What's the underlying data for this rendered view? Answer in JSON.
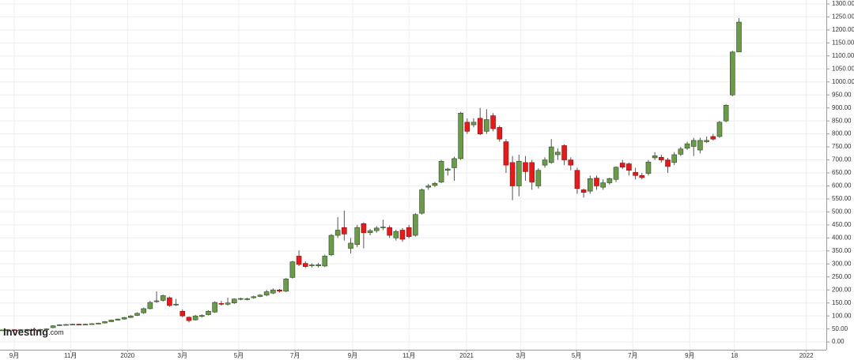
{
  "chart_data": {
    "type": "candlestick",
    "brand": [
      "Investing",
      ".com"
    ],
    "up_color": "#6a9a4a",
    "down_color": "#e41b1b",
    "grid": true,
    "ylim": [
      -30,
      1315
    ],
    "yticks": [
      {
        "value": 0,
        "label": "0.00"
      },
      {
        "value": 50,
        "label": "50.00"
      },
      {
        "value": 100,
        "label": "100.00"
      },
      {
        "value": 150,
        "label": "150.00"
      },
      {
        "value": 200,
        "label": "200.00"
      },
      {
        "value": 250,
        "label": "250.00"
      },
      {
        "value": 300,
        "label": "300.00"
      },
      {
        "value": 350,
        "label": "350.00"
      },
      {
        "value": 400,
        "label": "400.00"
      },
      {
        "value": 450,
        "label": "450.00"
      },
      {
        "value": 500,
        "label": "500.00"
      },
      {
        "value": 550,
        "label": "550.00"
      },
      {
        "value": 600,
        "label": "600.00"
      },
      {
        "value": 650,
        "label": "650.00"
      },
      {
        "value": 700,
        "label": "700.00"
      },
      {
        "value": 750,
        "label": "750.00"
      },
      {
        "value": 800,
        "label": "800.00"
      },
      {
        "value": 850,
        "label": "850.00"
      },
      {
        "value": 900,
        "label": "900.00"
      },
      {
        "value": 950,
        "label": "950.00"
      },
      {
        "value": 1000,
        "label": "1000.00"
      },
      {
        "value": 1050,
        "label": "1050.00"
      },
      {
        "value": 1100,
        "label": "1100.00"
      },
      {
        "value": 1150,
        "label": "1150.00"
      },
      {
        "value": 1200,
        "label": "1200.00"
      },
      {
        "value": 1250,
        "label": "1250.00"
      },
      {
        "value": 1300,
        "label": "1300.00"
      }
    ],
    "xlim": [
      -2.2,
      125.5
    ],
    "xticks": [
      {
        "value": 0,
        "label": "9月"
      },
      {
        "value": 8.7,
        "label": "11月"
      },
      {
        "value": 17.5,
        "label": "2020"
      },
      {
        "value": 26,
        "label": "3月"
      },
      {
        "value": 34.7,
        "label": "5月"
      },
      {
        "value": 43.4,
        "label": "7月"
      },
      {
        "value": 52.3,
        "label": "9月"
      },
      {
        "value": 61,
        "label": "11月"
      },
      {
        "value": 69.9,
        "label": "2021"
      },
      {
        "value": 78.3,
        "label": "3月"
      },
      {
        "value": 86.9,
        "label": "5月"
      },
      {
        "value": 95.6,
        "label": "7月"
      },
      {
        "value": 104.4,
        "label": "9月"
      },
      {
        "value": 111.3,
        "label": "18"
      },
      {
        "value": 122.4,
        "label": "2022"
      }
    ],
    "x": [
      -2,
      -1,
      0,
      1,
      2,
      3,
      4,
      5,
      6,
      7,
      8,
      9,
      10,
      11,
      12,
      13,
      14,
      15,
      16,
      17,
      18,
      19,
      20,
      21,
      22,
      23,
      24,
      25,
      26,
      27,
      28,
      29,
      30,
      31,
      32,
      33,
      34,
      35,
      36,
      37,
      38,
      39,
      40,
      41,
      42,
      43,
      44,
      45,
      46,
      47,
      48,
      49,
      50,
      51,
      52,
      53,
      54,
      55,
      56,
      57,
      58,
      59,
      60,
      61,
      62,
      63,
      64,
      65,
      66,
      67,
      68,
      69,
      70,
      71,
      72,
      73,
      74,
      75,
      76,
      77,
      78,
      79,
      80,
      81,
      82,
      83,
      84,
      85,
      86,
      87,
      88,
      89,
      90,
      91,
      92,
      93,
      94,
      95,
      96,
      97,
      98,
      99,
      100,
      101,
      102,
      103,
      104,
      105,
      106,
      107,
      108,
      109,
      110,
      111,
      112
    ],
    "ohlc": [
      [
        46,
        48,
        44,
        46
      ],
      [
        46,
        49,
        44,
        47
      ],
      [
        47,
        49,
        45,
        46
      ],
      [
        46,
        49,
        44,
        47
      ],
      [
        47,
        50,
        45,
        48
      ],
      [
        48,
        50,
        45,
        47
      ],
      [
        47,
        50,
        45,
        48
      ],
      [
        48,
        52,
        46,
        50
      ],
      [
        55,
        64,
        53,
        62
      ],
      [
        63,
        68,
        61,
        66
      ],
      [
        66,
        69,
        64,
        67
      ],
      [
        67,
        70,
        65,
        68
      ],
      [
        68,
        70,
        65,
        67
      ],
      [
        67,
        70,
        65,
        68
      ],
      [
        68,
        72,
        66,
        70
      ],
      [
        70,
        74,
        68,
        72
      ],
      [
        73,
        80,
        71,
        78
      ],
      [
        78,
        86,
        76,
        84
      ],
      [
        84,
        90,
        82,
        88
      ],
      [
        88,
        96,
        86,
        94
      ],
      [
        94,
        103,
        92,
        100
      ],
      [
        102,
        114,
        100,
        110
      ],
      [
        112,
        132,
        108,
        128
      ],
      [
        128,
        158,
        125,
        152
      ],
      [
        155,
        195,
        150,
        158
      ],
      [
        160,
        182,
        155,
        178
      ],
      [
        170,
        175,
        135,
        140
      ],
      [
        142,
        165,
        138,
        145
      ],
      [
        118,
        125,
        95,
        100
      ],
      [
        95,
        98,
        75,
        82
      ],
      [
        85,
        104,
        82,
        100
      ],
      [
        98,
        106,
        94,
        102
      ],
      [
        105,
        122,
        102,
        118
      ],
      [
        115,
        156,
        112,
        152
      ],
      [
        148,
        158,
        140,
        146
      ],
      [
        145,
        170,
        140,
        150
      ],
      [
        150,
        168,
        146,
        165
      ],
      [
        165,
        170,
        160,
        167
      ],
      [
        163,
        170,
        160,
        166
      ],
      [
        170,
        178,
        166,
        174
      ],
      [
        175,
        184,
        172,
        180
      ],
      [
        180,
        200,
        176,
        193
      ],
      [
        188,
        206,
        184,
        200
      ],
      [
        200,
        204,
        190,
        195
      ],
      [
        195,
        246,
        192,
        242
      ],
      [
        248,
        312,
        244,
        308
      ],
      [
        330,
        352,
        292,
        298
      ],
      [
        302,
        310,
        284,
        290
      ],
      [
        293,
        302,
        286,
        296
      ],
      [
        293,
        304,
        286,
        297
      ],
      [
        292,
        336,
        288,
        330
      ],
      [
        335,
        415,
        330,
        410
      ],
      [
        410,
        480,
        400,
        430
      ],
      [
        440,
        505,
        390,
        415
      ],
      [
        360,
        400,
        340,
        380
      ],
      [
        375,
        450,
        365,
        440
      ],
      [
        455,
        460,
        360,
        420
      ],
      [
        420,
        435,
        410,
        428
      ],
      [
        428,
        445,
        420,
        438
      ],
      [
        440,
        470,
        430,
        442
      ],
      [
        440,
        448,
        400,
        410
      ],
      [
        400,
        432,
        390,
        425
      ],
      [
        430,
        438,
        385,
        395
      ],
      [
        440,
        450,
        398,
        405
      ],
      [
        410,
        495,
        405,
        490
      ],
      [
        495,
        590,
        490,
        585
      ],
      [
        595,
        608,
        585,
        600
      ],
      [
        602,
        615,
        595,
        610
      ],
      [
        615,
        700,
        610,
        695
      ],
      [
        660,
        670,
        640,
        665
      ],
      [
        670,
        712,
        620,
        705
      ],
      [
        705,
        885,
        700,
        880
      ],
      [
        845,
        860,
        800,
        810
      ],
      [
        835,
        860,
        825,
        845
      ],
      [
        860,
        900,
        795,
        800
      ],
      [
        810,
        895,
        800,
        855
      ],
      [
        870,
        880,
        810,
        820
      ],
      [
        825,
        832,
        770,
        780
      ],
      [
        770,
        780,
        650,
        680
      ],
      [
        690,
        715,
        545,
        600
      ],
      [
        600,
        720,
        560,
        695
      ],
      [
        690,
        715,
        620,
        655
      ],
      [
        690,
        700,
        585,
        615
      ],
      [
        600,
        668,
        590,
        660
      ],
      [
        680,
        710,
        670,
        700
      ],
      [
        690,
        780,
        685,
        750
      ],
      [
        720,
        745,
        700,
        730
      ],
      [
        755,
        760,
        680,
        700
      ],
      [
        700,
        710,
        660,
        680
      ],
      [
        660,
        670,
        570,
        590
      ],
      [
        585,
        590,
        555,
        575
      ],
      [
        580,
        640,
        570,
        628
      ],
      [
        630,
        640,
        585,
        600
      ],
      [
        595,
        625,
        585,
        612
      ],
      [
        612,
        632,
        605,
        628
      ],
      [
        625,
        675,
        615,
        672
      ],
      [
        688,
        700,
        665,
        672
      ],
      [
        685,
        690,
        640,
        660
      ],
      [
        652,
        670,
        625,
        640
      ],
      [
        640,
        650,
        625,
        632
      ],
      [
        648,
        700,
        640,
        692
      ],
      [
        708,
        730,
        700,
        716
      ],
      [
        710,
        720,
        690,
        700
      ],
      [
        700,
        708,
        650,
        675
      ],
      [
        690,
        730,
        680,
        720
      ],
      [
        722,
        750,
        715,
        742
      ],
      [
        745,
        770,
        738,
        762
      ],
      [
        752,
        785,
        715,
        775
      ],
      [
        738,
        785,
        725,
        775
      ],
      [
        770,
        790,
        765,
        775
      ],
      [
        790,
        800,
        775,
        780
      ],
      [
        790,
        850,
        785,
        845
      ],
      [
        850,
        915,
        845,
        910
      ],
      [
        950,
        1120,
        945,
        1115
      ],
      [
        1115,
        1245,
        1115,
        1230
      ]
    ]
  }
}
